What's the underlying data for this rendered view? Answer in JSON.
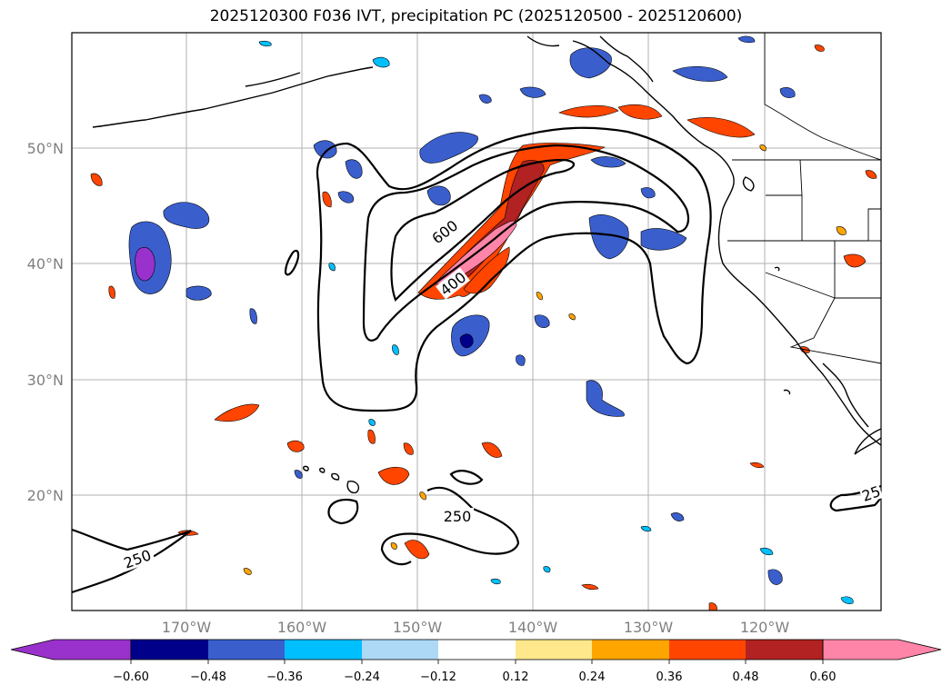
{
  "title": "2025120300 F036 IVT, precipitation PC (2025120500 - 2025120600)",
  "lat_labels": [
    "50°N",
    "40°N",
    "30°N",
    "20°N"
  ],
  "lon_labels": [
    "170°W",
    "160°W",
    "150°W",
    "140°W",
    "130°W",
    "120°W"
  ],
  "contour_labels": [
    "600",
    "400",
    "250",
    "250",
    "25"
  ],
  "colorbar": {
    "ticks": [
      "−0.60",
      "−0.48",
      "−0.36",
      "−0.24",
      "−0.12",
      "0.12",
      "0.24",
      "0.36",
      "0.48",
      "0.60"
    ],
    "colors": [
      "#9932CC",
      "#00008B",
      "#3A5FCD",
      "#00BFFF",
      "#ADD8F6",
      "#FFFFFF",
      "#FFE88C",
      "#FFA500",
      "#FF4500",
      "#B22222",
      "#FF85A8"
    ]
  }
}
